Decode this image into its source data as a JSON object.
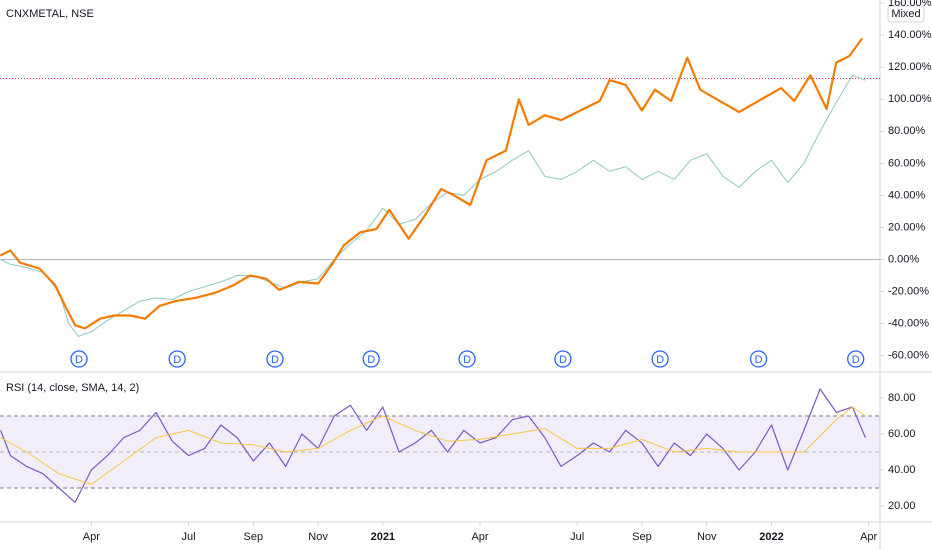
{
  "chart_data": [
    {
      "type": "line",
      "title": "CNXMETAL, NSE",
      "scale_mode": "Mixed",
      "xlim": [
        0.18,
        27.35
      ],
      "ylim": [
        -69,
        162
      ],
      "yticks": [
        {
          "value": -60,
          "label": "-60.00%"
        },
        {
          "value": -40,
          "label": "-40.00%"
        },
        {
          "value": -20,
          "label": "-20.00%"
        },
        {
          "value": 0,
          "label": "0.00%"
        },
        {
          "value": 20,
          "label": "20.00%"
        },
        {
          "value": 40,
          "label": "40.00%"
        },
        {
          "value": 60,
          "label": "60.00%"
        },
        {
          "value": 80,
          "label": "80.00%"
        },
        {
          "value": 100,
          "label": "100.00%"
        },
        {
          "value": 120,
          "label": "120.00%"
        },
        {
          "value": 140,
          "label": "140.00%"
        },
        {
          "value": 160,
          "label": "160.00%"
        }
      ],
      "reference_line": 113,
      "events": [
        {
          "x": 2.62,
          "label": "D"
        },
        {
          "x": 5.65,
          "label": "D"
        },
        {
          "x": 8.67,
          "label": "D"
        },
        {
          "x": 11.64,
          "label": "D"
        },
        {
          "x": 14.6,
          "label": "D"
        },
        {
          "x": 17.56,
          "label": "D"
        },
        {
          "x": 20.56,
          "label": "D"
        },
        {
          "x": 23.6,
          "label": "D"
        },
        {
          "x": 26.6,
          "label": "D"
        }
      ],
      "series": [
        {
          "color": "#8cc7c0",
          "width": 1,
          "x": [
            0.2,
            0.5,
            1,
            1.5,
            2,
            2.3,
            2.6,
            3,
            3.5,
            4,
            4.5,
            5,
            5.5,
            6,
            6.5,
            7,
            7.5,
            8,
            8.5,
            9,
            9.5,
            10,
            10.5,
            11,
            11.5,
            12,
            12.5,
            13,
            13.5,
            14,
            14.5,
            15,
            15.5,
            16,
            16.5,
            17,
            17.5,
            18,
            18.5,
            19,
            19.5,
            20,
            20.5,
            21,
            21.5,
            22,
            22.5,
            23,
            23.5,
            24,
            24.5,
            25,
            25.5,
            26,
            26.5,
            26.9
          ],
          "values": [
            0,
            -3,
            -5,
            -8,
            -20,
            -40,
            -48,
            -45,
            -38,
            -32,
            -26,
            -24,
            -25,
            -20,
            -17,
            -14,
            -10,
            -10,
            -14,
            -18,
            -14,
            -12,
            0,
            10,
            18,
            32,
            22,
            25,
            35,
            42,
            40,
            50,
            55,
            62,
            68,
            52,
            50,
            55,
            62,
            55,
            58,
            50,
            55,
            50,
            62,
            66,
            52,
            45,
            55,
            62,
            48,
            60,
            80,
            98,
            115,
            112
          ]
        },
        {
          "color": "#f57c00",
          "width": 2.2,
          "x": [
            0.19,
            0.5,
            0.8,
            1.4,
            1.88,
            2.19,
            2.5,
            2.8,
            3.27,
            3.7,
            4.2,
            4.66,
            5.1,
            5.6,
            6.2,
            6.8,
            7.4,
            7.9,
            8.4,
            8.8,
            9.4,
            10,
            10.4,
            10.8,
            11.3,
            11.8,
            12.2,
            12.8,
            13.3,
            13.8,
            14.2,
            14.7,
            15.2,
            15.8,
            16.2,
            16.5,
            17,
            17.5,
            18.1,
            18.7,
            19,
            19.5,
            20,
            20.4,
            20.9,
            21.4,
            21.8,
            22.4,
            23,
            23.6,
            24.3,
            24.7,
            25.2,
            25.7,
            26,
            26.4,
            26.8
          ],
          "values": [
            2.5,
            5.6,
            -2,
            -5.6,
            -16,
            -29,
            -41,
            -43,
            -37,
            -35,
            -35,
            -37,
            -29,
            -26,
            -24,
            -21,
            -16,
            -10,
            -12,
            -19,
            -14,
            -15,
            -4,
            9,
            17,
            19,
            31,
            13,
            27.5,
            44,
            40,
            34,
            62,
            68,
            100,
            84,
            90,
            87,
            93,
            99,
            112,
            109,
            93,
            106,
            99,
            126,
            106,
            99,
            92,
            99,
            107,
            99,
            115,
            94,
            123,
            127,
            138
          ]
        }
      ]
    },
    {
      "type": "line",
      "title": "RSI (14, close, SMA, 14, 2)",
      "xlim": [
        0.18,
        27.35
      ],
      "ylim": [
        11.1,
        92.2
      ],
      "band": [
        30,
        70
      ],
      "mid": 50,
      "yticks": [
        {
          "value": 20,
          "label": "20.00"
        },
        {
          "value": 40,
          "label": "40.00"
        },
        {
          "value": 60,
          "label": "60.00"
        },
        {
          "value": 80,
          "label": "80.00"
        }
      ],
      "xticks": [
        {
          "value": 3,
          "label": "Apr"
        },
        {
          "value": 6,
          "label": "Jul"
        },
        {
          "value": 8,
          "label": "Sep"
        },
        {
          "value": 10,
          "label": "Nov"
        },
        {
          "value": 12,
          "label": "2021"
        },
        {
          "value": 15,
          "label": "Apr"
        },
        {
          "value": 18,
          "label": "Jul"
        },
        {
          "value": 20,
          "label": "Sep"
        },
        {
          "value": 22,
          "label": "Nov"
        },
        {
          "value": 24,
          "label": "2022"
        },
        {
          "value": 27,
          "label": "Apr"
        }
      ],
      "series": [
        {
          "color": "#7e57c2",
          "width": 1.2,
          "x": [
            0.2,
            0.5,
            1,
            1.5,
            2,
            2.5,
            3,
            3.5,
            4,
            4.5,
            5,
            5.5,
            6,
            6.5,
            7,
            7.5,
            8,
            8.5,
            9,
            9.5,
            10,
            10.5,
            11,
            11.5,
            12,
            12.5,
            13,
            13.5,
            14,
            14.5,
            15,
            15.5,
            16,
            16.5,
            17,
            17.5,
            18,
            18.5,
            19,
            19.5,
            20,
            20.5,
            21,
            21.5,
            22,
            22.5,
            23,
            23.5,
            24,
            24.5,
            25,
            25.5,
            26,
            26.5,
            26.9
          ],
          "values": [
            62,
            48,
            42,
            38,
            30,
            22,
            40,
            48,
            58,
            62,
            72,
            56,
            48,
            52,
            65,
            58,
            45,
            55,
            42,
            60,
            52,
            70,
            76,
            62,
            75,
            50,
            55,
            62,
            50,
            62,
            55,
            58,
            68,
            70,
            58,
            42,
            48,
            55,
            50,
            62,
            55,
            42,
            55,
            48,
            60,
            52,
            40,
            50,
            65,
            40,
            62,
            85,
            72,
            75,
            58
          ]
        },
        {
          "color": "#f5c842",
          "width": 1,
          "x": [
            0.2,
            1,
            2,
            3,
            4,
            5,
            6,
            7,
            8,
            9,
            10,
            11,
            12,
            13,
            14,
            15,
            16,
            17,
            18,
            19,
            20,
            21,
            22,
            23,
            24,
            25,
            26,
            26.5,
            26.9
          ],
          "values": [
            58,
            50,
            38,
            32,
            45,
            58,
            62,
            55,
            54,
            50,
            52,
            62,
            70,
            62,
            56,
            57,
            60,
            63,
            52,
            52,
            57,
            50,
            52,
            50,
            50,
            50,
            68,
            75,
            70
          ]
        }
      ]
    }
  ]
}
